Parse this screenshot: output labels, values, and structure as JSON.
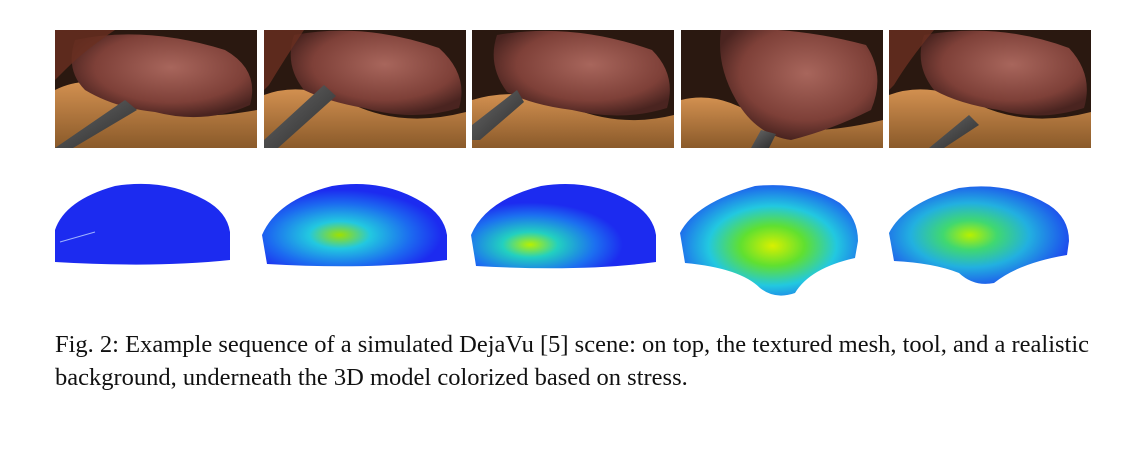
{
  "figure": {
    "top_row_label": "textured mesh, tool and realistic background",
    "bottom_row_label": "3D model colorized by stress",
    "caption": "Fig. 2: Example sequence of a simulated DejaVu [5] scene: on top, the textured mesh, tool, and a realistic background, underneath the 3D model colorized based on stress."
  },
  "frames": [
    {
      "tool": "left-low",
      "stress": 0.0
    },
    {
      "tool": "left-mid",
      "stress": 0.45
    },
    {
      "tool": "left-high",
      "stress": 0.5
    },
    {
      "tool": "bottom",
      "stress": 0.9
    },
    {
      "tool": "right-low",
      "stress": 0.65
    }
  ],
  "colors": {
    "tissue": "#8a4a3e",
    "fat": "#c88b4a",
    "stress_low": "#1c2bf0",
    "stress_mid": "#22c8e0",
    "stress_high": "#d8f000"
  }
}
